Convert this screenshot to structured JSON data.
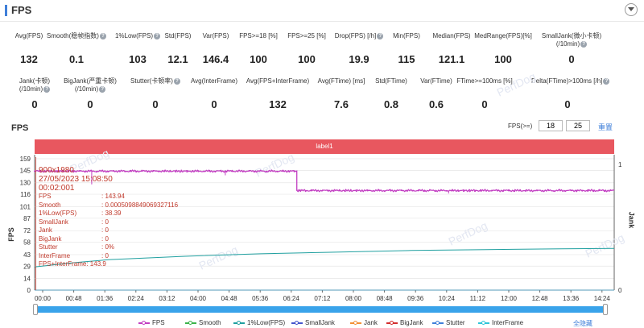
{
  "header": {
    "title": "FPS"
  },
  "stats_row1": [
    {
      "label": "Avg(FPS)",
      "value": "132",
      "help": false
    },
    {
      "label": "Smooth(稳帧指数)",
      "value": "0.1",
      "help": true
    },
    {
      "label": "1%Low(FPS)",
      "value": "103",
      "help": true
    },
    {
      "label": "Std(FPS)",
      "value": "12.1",
      "help": false
    },
    {
      "label": "Var(FPS)",
      "value": "146.4",
      "help": false
    },
    {
      "label": "FPS>=18 [%]",
      "value": "100",
      "help": false
    },
    {
      "label": "FPS>=25 [%]",
      "value": "100",
      "help": false
    },
    {
      "label": "Drop(FPS) [/h]",
      "value": "19.9",
      "help": true
    },
    {
      "label": "Min(FPS)",
      "value": "115",
      "help": false
    },
    {
      "label": "Median(FPS)",
      "value": "121.1",
      "help": false
    },
    {
      "label": "MedRange(FPS)[%]",
      "value": "100",
      "help": false
    },
    {
      "label": "SmallJank(微小卡顿)",
      "label2": "(/10min)",
      "value": "0",
      "help": true
    }
  ],
  "stats_row2": [
    {
      "label": "Jank(卡顿)",
      "label2": "(/10min)",
      "value": "0",
      "help": true
    },
    {
      "label": "BigJank(严重卡顿)",
      "label2": "(/10min)",
      "value": "0",
      "help": true
    },
    {
      "label": "Stutter(卡顿率)",
      "value": "0",
      "help": true
    },
    {
      "label": "Avg(InterFrame)",
      "value": "0",
      "help": false
    },
    {
      "label": "Avg(FPS+InterFrame)",
      "value": "132",
      "help": false
    },
    {
      "label": "Avg(FTime) [ms]",
      "value": "7.6",
      "help": false
    },
    {
      "label": "Std(FTime)",
      "value": "0.8",
      "help": false
    },
    {
      "label": "Var(FTime)",
      "value": "0.6",
      "help": false
    },
    {
      "label": "FTime>=100ms [%]",
      "value": "0",
      "help": false
    },
    {
      "label": "Delta(FTime)>100ms [/h]",
      "value": "0",
      "help": true
    }
  ],
  "section": {
    "title": "FPS",
    "threshold_label": "FPS(>=)",
    "threshold_1": "18",
    "threshold_2": "25",
    "reset_label": "重置"
  },
  "chart_data": {
    "type": "line",
    "band_label": "label1",
    "ylabel_left": "FPS",
    "ylabel_right": "Jank",
    "y_ticks_left": [
      0,
      14,
      29,
      43,
      58,
      72,
      87,
      101,
      116,
      130,
      145,
      159
    ],
    "y_ticks_right": [
      0,
      1
    ],
    "x_ticks": [
      "00:00",
      "00:48",
      "01:36",
      "02:24",
      "03:12",
      "04:00",
      "04:48",
      "05:36",
      "06:24",
      "07:12",
      "08:00",
      "08:48",
      "09:36",
      "10:24",
      "11:12",
      "12:00",
      "12:48",
      "13:36",
      "14:24"
    ],
    "ylim": [
      0,
      159
    ],
    "x_range_seconds": [
      0,
      924
    ],
    "series": [
      {
        "name": "FPS",
        "color": "#c23ec2",
        "segments": [
          {
            "x": [
              0,
              418
            ],
            "y": 144
          },
          {
            "x": [
              418,
              924
            ],
            "y": 120.5
          }
        ],
        "drops_x": [
          91,
          304,
          420,
          660
        ],
        "drops_y": [
          128,
          139,
          122,
          117
        ]
      },
      {
        "name": "Smooth",
        "color": "#3cb44b",
        "values_const": 0
      },
      {
        "name": "1%Low(FPS)",
        "color": "#20a0a0",
        "x": [
          0,
          60,
          120,
          240,
          360,
          480,
          600,
          720,
          840,
          924
        ],
        "y": [
          28,
          33,
          37,
          41,
          44,
          46,
          48,
          49,
          50,
          50.5
        ]
      },
      {
        "name": "SmallJank",
        "color": "#4455cc",
        "values_const": 0
      },
      {
        "name": "Jank",
        "color": "#f29136",
        "values_const": 0
      },
      {
        "name": "BigJank",
        "color": "#d32f2f",
        "values_const": 0
      },
      {
        "name": "Stutter",
        "color": "#3f7fd9",
        "values_const": 0
      },
      {
        "name": "InterFrame",
        "color": "#2fc6d9",
        "values_const": 0
      }
    ],
    "hide_all_label": "全隐藏"
  },
  "tooltip": {
    "resolution": "900x1980",
    "date": "27/05/2023 15:08:50",
    "time": "00:02:001",
    "rows": [
      {
        "k": "FPS",
        "v": ": 143.94"
      },
      {
        "k": "Smooth",
        "v": ": 0.0005098849069327116"
      },
      {
        "k": "1%Low(FPS)",
        "v": ": 38.39"
      },
      {
        "k": "SmallJank",
        "v": ": 0"
      },
      {
        "k": "Jank",
        "v": ": 0"
      },
      {
        "k": "BigJank",
        "v": ": 0"
      },
      {
        "k": "Stutter",
        "v": ": 0%"
      },
      {
        "k": "InterFrame",
        "v": ": 0"
      }
    ],
    "combined": "FPS+InterFrame: 143.9"
  },
  "watermark": "PerfDog"
}
